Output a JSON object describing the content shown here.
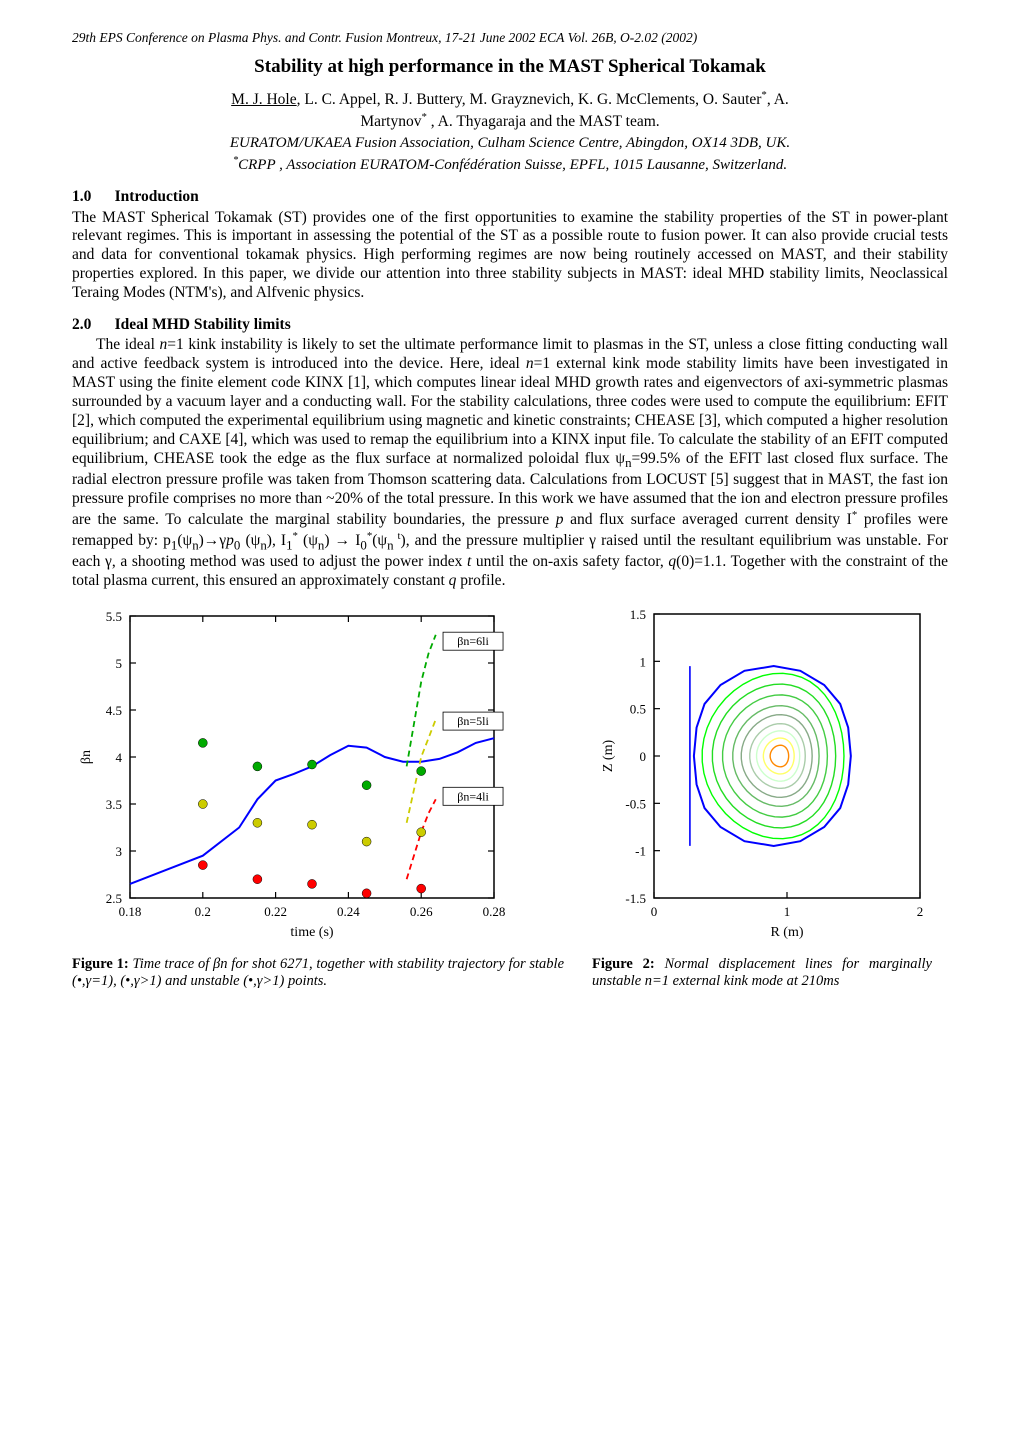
{
  "header": {
    "conference": "29th EPS Conference on Plasma Phys. and Contr. Fusion Montreux, 17-21 June 2002 ECA Vol. 26B, O-2.02  (2002)"
  },
  "title": "Stability at high performance in the MAST Spherical Tokamak",
  "authors_line1_prefix": "M. J. Hole",
  "authors_line1_rest": ", L. C. Appel, R. J. Buttery, M. Grayznevich, K. G. McClements,  O. Sauter",
  "authors_line1_suffix": ", A.",
  "authors_line2_prefix": "Martynov",
  "authors_line2_suffix": " , A. Thyagaraja and the MAST team.",
  "affiliation1": "EURATOM/UKAEA Fusion Association, Culham Science Centre, Abingdon, OX14 3DB, UK.",
  "affiliation2_sup": "*",
  "affiliation2": "CRPP , Association EURATOM-Confédération Suisse, EPFL, 1015 Lausanne, Switzerland.",
  "section1": {
    "num": "1.0",
    "title": "Introduction",
    "body": "The MAST Spherical Tokamak (ST) provides one of the first opportunities to examine the stability properties of the ST in power-plant relevant regimes. This is important in assessing the potential of the ST as a possible route to fusion power. It can also provide crucial tests and data for conventional tokamak physics. High performing regimes are now being routinely accessed on MAST, and their stability properties explored.  In this paper, we divide our attention into three stability subjects in MAST: ideal MHD stability limits, Neoclassical Teraing Modes (NTM's), and Alfvenic physics."
  },
  "section2": {
    "num": "2.0",
    "title": "Ideal MHD Stability limits"
  },
  "fig1": {
    "type": "line",
    "xlim": [
      0.18,
      0.28
    ],
    "ylim": [
      2.5,
      5.5
    ],
    "xticks": [
      0.18,
      0.2,
      0.22,
      0.24,
      0.26,
      0.28
    ],
    "yticks": [
      2.5,
      3,
      3.5,
      4,
      4.5,
      5,
      5.5
    ],
    "xlabel": "time (s)",
    "ylabel": "βn",
    "background_color": "#ffffff",
    "axis_color": "#000000",
    "label_fontsize": 14,
    "tick_fontsize": 13,
    "main_curve": {
      "color": "#0000ff",
      "points": [
        [
          0.18,
          2.65
        ],
        [
          0.19,
          2.8
        ],
        [
          0.2,
          2.95
        ],
        [
          0.21,
          3.25
        ],
        [
          0.215,
          3.55
        ],
        [
          0.22,
          3.75
        ],
        [
          0.225,
          3.82
        ],
        [
          0.23,
          3.9
        ],
        [
          0.235,
          4.02
        ],
        [
          0.24,
          4.12
        ],
        [
          0.245,
          4.1
        ],
        [
          0.25,
          4.0
        ],
        [
          0.255,
          3.95
        ],
        [
          0.26,
          3.95
        ],
        [
          0.265,
          3.98
        ],
        [
          0.27,
          4.05
        ],
        [
          0.275,
          4.15
        ],
        [
          0.28,
          4.2
        ]
      ],
      "width": 2
    },
    "dashed_curves": [
      {
        "color": "#00aa00",
        "label": "βn=6li",
        "label_pos": [
          0.266,
          5.2
        ],
        "points": [
          [
            0.256,
            3.9
          ],
          [
            0.258,
            4.35
          ],
          [
            0.26,
            4.8
          ],
          [
            0.262,
            5.1
          ],
          [
            0.264,
            5.3
          ]
        ]
      },
      {
        "color": "#cccc00",
        "label": "βn=5li",
        "label_pos": [
          0.266,
          4.35
        ],
        "points": [
          [
            0.256,
            3.3
          ],
          [
            0.258,
            3.65
          ],
          [
            0.26,
            4.0
          ],
          [
            0.262,
            4.2
          ],
          [
            0.264,
            4.4
          ]
        ]
      },
      {
        "color": "#ff0000",
        "label": "βn=4li",
        "label_pos": [
          0.266,
          3.55
        ],
        "points": [
          [
            0.256,
            2.7
          ],
          [
            0.258,
            2.95
          ],
          [
            0.26,
            3.2
          ],
          [
            0.262,
            3.4
          ],
          [
            0.264,
            3.55
          ]
        ]
      }
    ],
    "marker_sets": [
      {
        "color": "#00aa00",
        "points": [
          [
            0.2,
            4.15
          ],
          [
            0.215,
            3.9
          ],
          [
            0.23,
            3.92
          ],
          [
            0.245,
            3.7
          ],
          [
            0.26,
            3.85
          ]
        ]
      },
      {
        "color": "#cccc00",
        "points": [
          [
            0.2,
            3.5
          ],
          [
            0.215,
            3.3
          ],
          [
            0.23,
            3.28
          ],
          [
            0.245,
            3.1
          ],
          [
            0.26,
            3.2
          ]
        ]
      },
      {
        "color": "#ff0000",
        "points": [
          [
            0.2,
            2.85
          ],
          [
            0.215,
            2.7
          ],
          [
            0.23,
            2.65
          ],
          [
            0.245,
            2.55
          ],
          [
            0.26,
            2.6
          ]
        ]
      }
    ],
    "caption_label": "Figure 1:",
    "caption_text": " Time trace of βn for shot 6271, together with stability trajectory for stable  (•,γ=1), (•,γ>1) and unstable  (•,γ>1) points."
  },
  "fig2": {
    "type": "contour",
    "xlim": [
      0,
      2
    ],
    "ylim": [
      -1.5,
      1.5
    ],
    "xticks": [
      0,
      1,
      2
    ],
    "yticks": [
      -1.5,
      -1,
      -0.5,
      0,
      0.5,
      1,
      1.5
    ],
    "xlabel": "R (m)",
    "ylabel": "Z (m)",
    "background_color": "#ffffff",
    "axis_color": "#000000",
    "label_fontsize": 14,
    "tick_fontsize": 13,
    "boundary_color": "#0000ff",
    "boundary_width": 2,
    "contour_colors": [
      "#00ff00",
      "#22dd22",
      "#44cc44",
      "#66bb66",
      "#88aa88",
      "#aaccaa",
      "#ccffcc",
      "#ffff66",
      "#ff8800"
    ],
    "boundary_points": [
      [
        0.3,
        0.0
      ],
      [
        0.32,
        0.3
      ],
      [
        0.38,
        0.55
      ],
      [
        0.5,
        0.75
      ],
      [
        0.68,
        0.9
      ],
      [
        0.9,
        0.95
      ],
      [
        1.1,
        0.9
      ],
      [
        1.28,
        0.75
      ],
      [
        1.4,
        0.55
      ],
      [
        1.46,
        0.3
      ],
      [
        1.48,
        0.0
      ],
      [
        1.46,
        -0.3
      ],
      [
        1.4,
        -0.55
      ],
      [
        1.28,
        -0.75
      ],
      [
        1.1,
        -0.9
      ],
      [
        0.9,
        -0.95
      ],
      [
        0.68,
        -0.9
      ],
      [
        0.5,
        -0.75
      ],
      [
        0.38,
        -0.55
      ],
      [
        0.32,
        -0.3
      ],
      [
        0.3,
        0.0
      ]
    ],
    "caption_label": "Figure 2:",
    "caption_text": " Normal displacement lines for marginally unstable n=1 external kink mode at 210ms"
  }
}
